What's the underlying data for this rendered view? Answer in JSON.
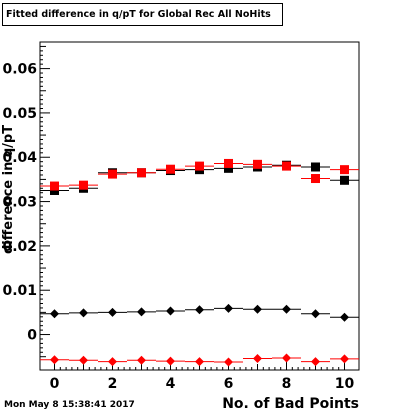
{
  "chart_data": {
    "type": "scatter",
    "title": "Fitted difference in q/pT for Global Rec All NoHits",
    "xlabel": "No. of Bad Points",
    "ylabel": "difference in q/pT",
    "xlim": [
      -0.5,
      10.5
    ],
    "ylim": [
      -0.008,
      0.066
    ],
    "x_ticks": [
      "0",
      "2",
      "4",
      "6",
      "8",
      "10"
    ],
    "y_ticks": [
      "0",
      "0.01",
      "0.02",
      "0.03",
      "0.04",
      "0.05",
      "0.06"
    ],
    "x": [
      0,
      1,
      2,
      3,
      4,
      5,
      6,
      7,
      8,
      9,
      10
    ],
    "series": [
      {
        "marker": "square",
        "color": "#000000",
        "values": [
          0.0325,
          0.033,
          0.0365,
          0.0365,
          0.037,
          0.0372,
          0.0375,
          0.0378,
          0.0382,
          0.0378,
          0.0348
        ]
      },
      {
        "marker": "square",
        "color": "#ff0000",
        "values": [
          0.0335,
          0.0337,
          0.0362,
          0.0365,
          0.0373,
          0.038,
          0.0386,
          0.0384,
          0.038,
          0.0352,
          0.0372
        ]
      },
      {
        "marker": "diamond",
        "color": "#000000",
        "values": [
          0.0047,
          0.0049,
          0.005,
          0.0051,
          0.0053,
          0.0056,
          0.0059,
          0.0057,
          0.0057,
          0.0047,
          0.0039
        ]
      },
      {
        "marker": "diamond",
        "color": "#ff0000",
        "values": [
          -0.0057,
          -0.0058,
          -0.0061,
          -0.0058,
          -0.006,
          -0.0061,
          -0.0062,
          -0.0054,
          -0.0053,
          -0.0061,
          -0.0055
        ]
      }
    ]
  },
  "timestamp": "Mon May  8 15:38:41 2017"
}
